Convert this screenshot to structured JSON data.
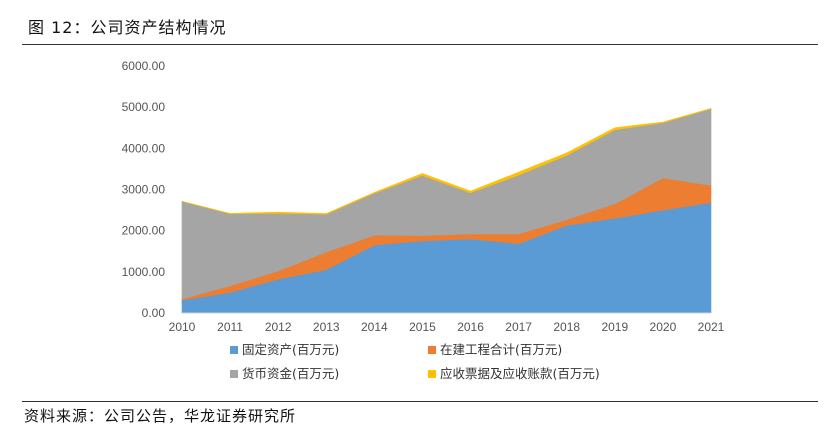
{
  "figure": {
    "title": "图 12：公司资产结构情况",
    "source": "资料来源：公司公告，华龙证券研究所"
  },
  "chart_data": {
    "type": "area",
    "stacked": true,
    "x": [
      "2010",
      "2011",
      "2012",
      "2013",
      "2014",
      "2015",
      "2016",
      "2017",
      "2018",
      "2019",
      "2020",
      "2021"
    ],
    "ylim": [
      0,
      6000
    ],
    "yticks": [
      "0.00",
      "1000.00",
      "2000.00",
      "3000.00",
      "4000.00",
      "5000.00",
      "6000.00"
    ],
    "grid": false,
    "legend_position": "bottom",
    "series": [
      {
        "name": "固定资产(百万元)",
        "color": "#5B9BD5",
        "values": [
          310,
          500,
          820,
          1050,
          1650,
          1750,
          1800,
          1680,
          2130,
          2300,
          2500,
          2680
        ]
      },
      {
        "name": "在建工程合计(百万元)",
        "color": "#ED7D31",
        "values": [
          30,
          160,
          200,
          430,
          240,
          130,
          120,
          240,
          140,
          350,
          780,
          420
        ]
      },
      {
        "name": "货币资金(百万元)",
        "color": "#A5A5A5",
        "values": [
          2370,
          1750,
          1400,
          920,
          1020,
          1460,
          1000,
          1430,
          1560,
          1800,
          1340,
          1860
        ]
      },
      {
        "name": "应收票据及应收账款(百万元)",
        "color": "#FFC000",
        "values": [
          5,
          10,
          30,
          15,
          20,
          50,
          40,
          70,
          60,
          50,
          20,
          10
        ]
      }
    ]
  }
}
